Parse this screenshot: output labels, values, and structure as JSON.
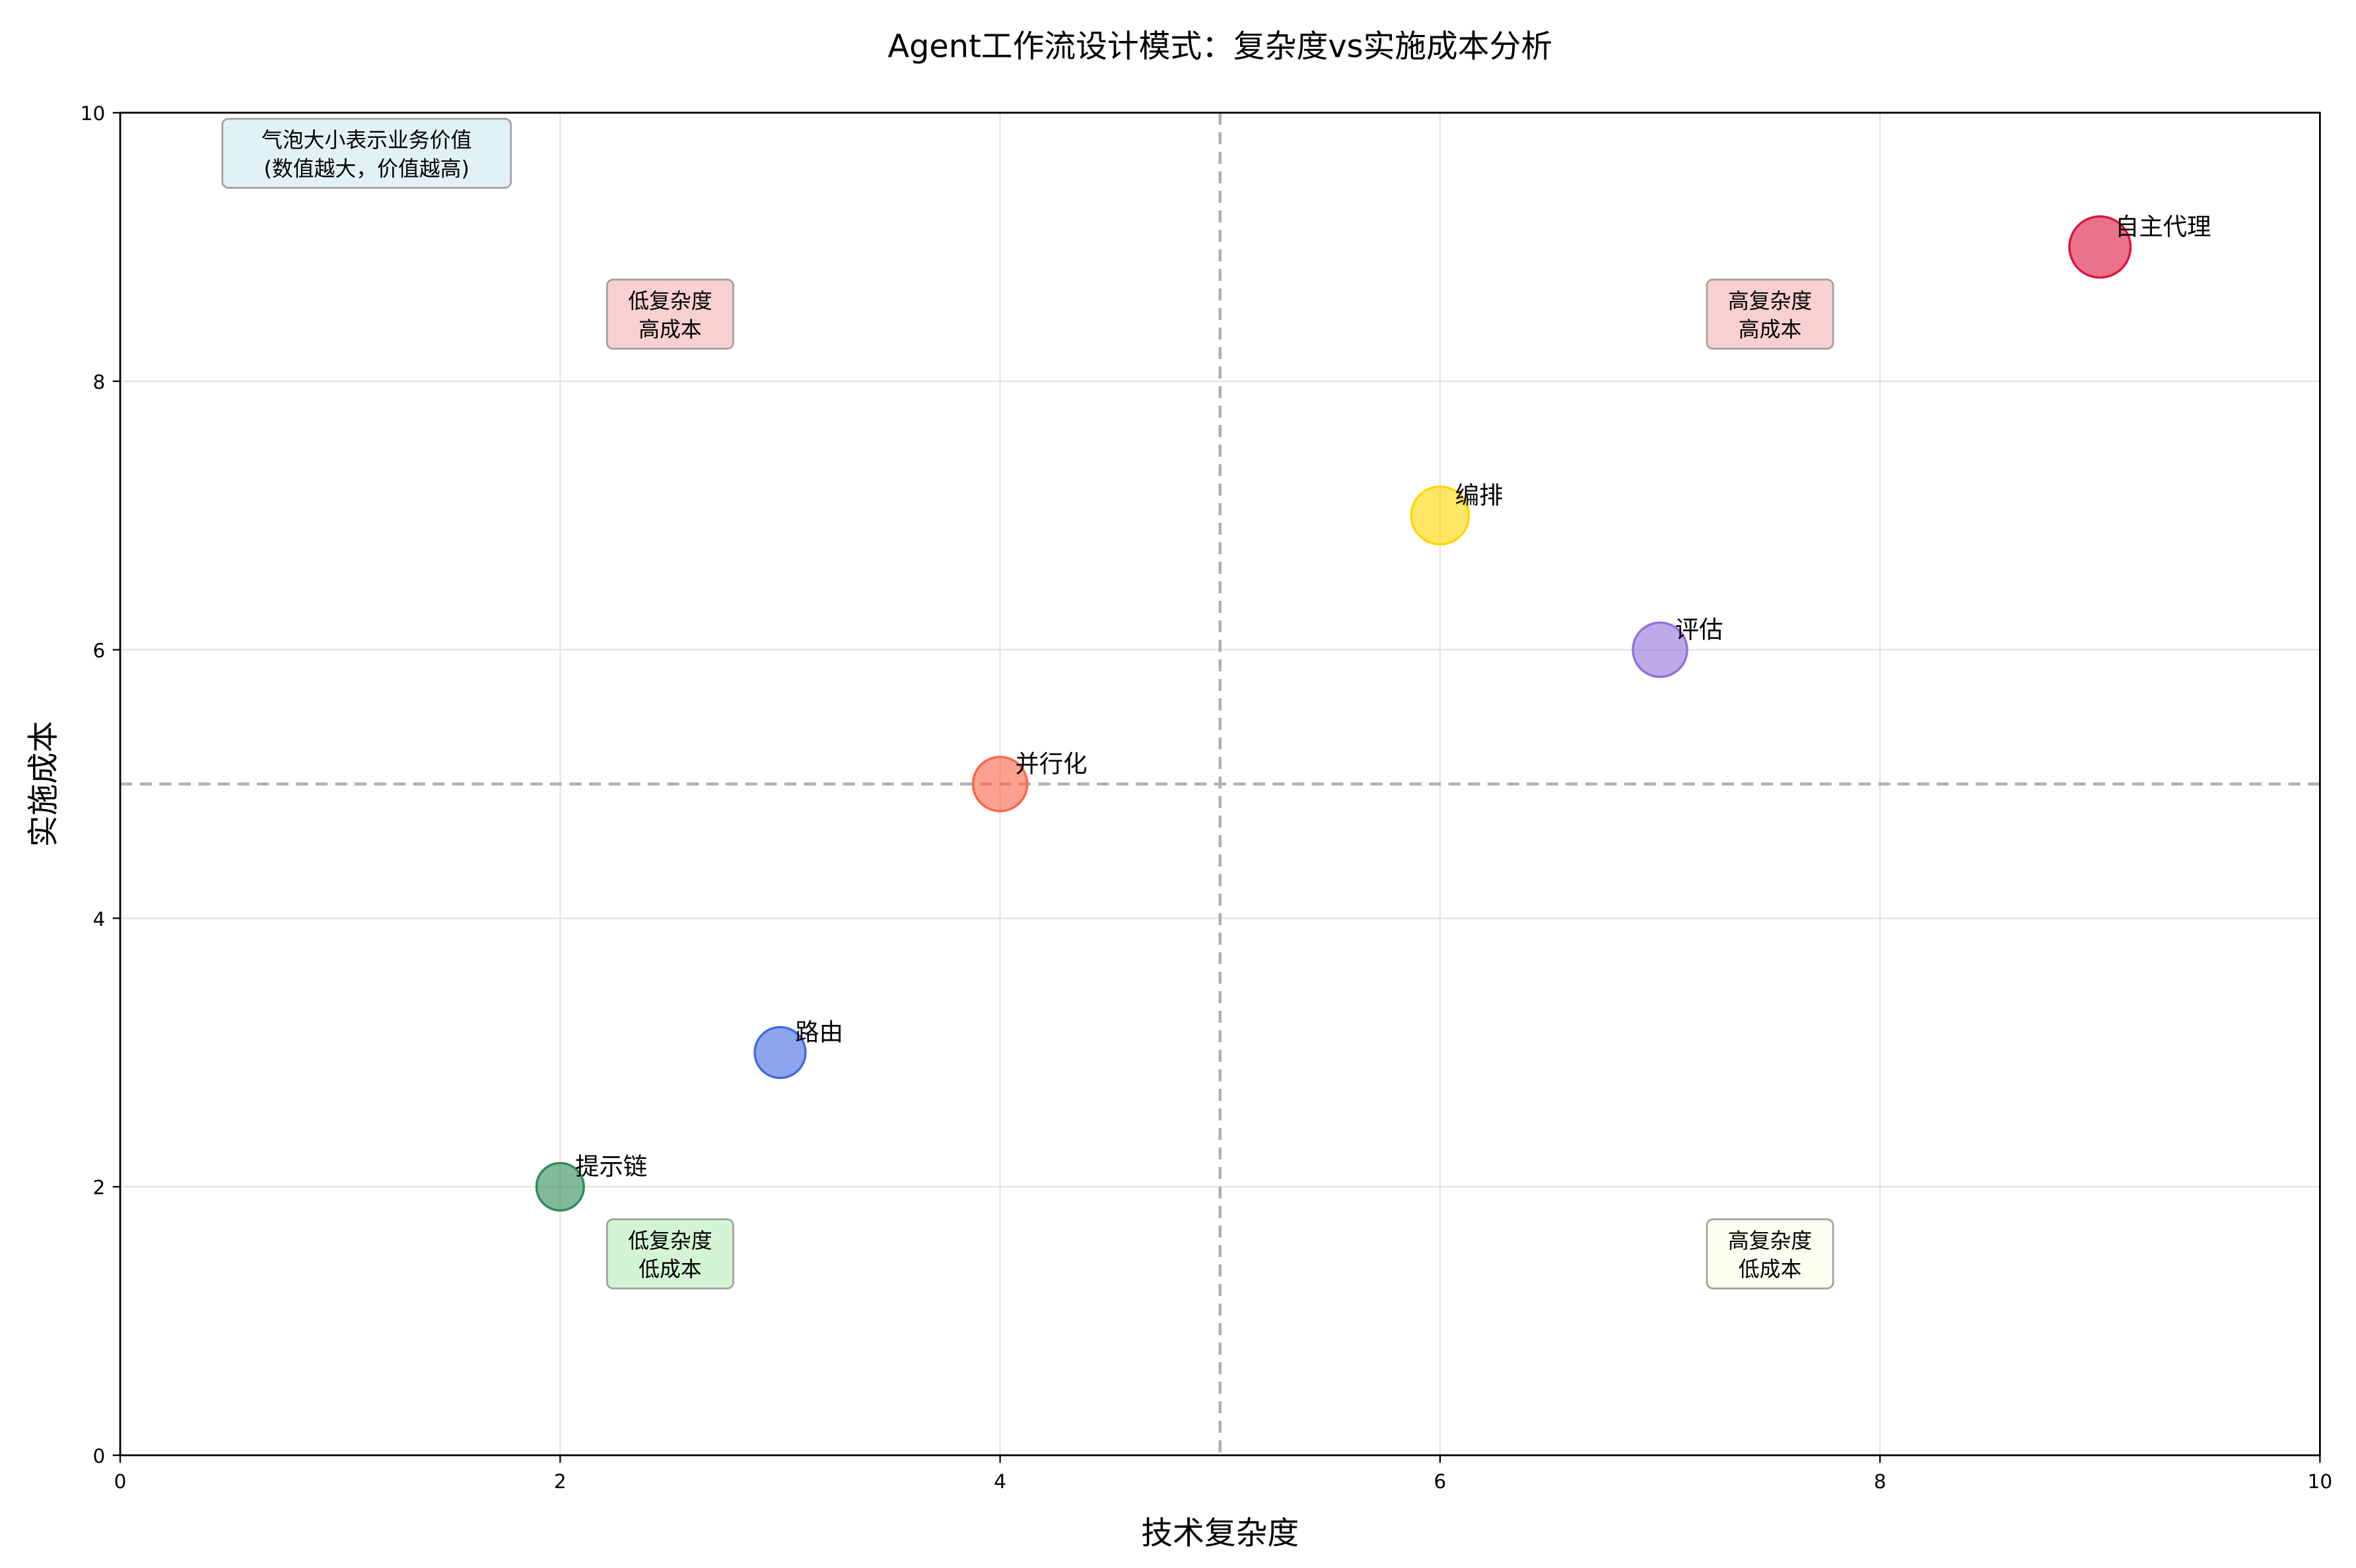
{
  "chart_data": {
    "type": "scatter",
    "title": "Agent工作流设计模式：复杂度vs实施成本分析",
    "xlabel": "技术复杂度",
    "ylabel": "实施成本",
    "xlim": [
      0,
      10
    ],
    "ylim": [
      0,
      10
    ],
    "xticks": [
      "0",
      "2",
      "4",
      "6",
      "8",
      "10"
    ],
    "yticks": [
      "0",
      "2",
      "4",
      "6",
      "8",
      "10"
    ],
    "grid": true,
    "reference_lines": {
      "x": 5,
      "y": 5,
      "style": "dashed",
      "color": "#b0b0b0"
    },
    "series": [
      {
        "label": "提示链",
        "x": 2,
        "y": 2,
        "size": 5,
        "color": "#2E8B57"
      },
      {
        "label": "路由",
        "x": 3,
        "y": 3,
        "size": 6,
        "color": "#4169E1"
      },
      {
        "label": "并行化",
        "x": 4,
        "y": 5,
        "size": 7,
        "color": "#FF6347"
      },
      {
        "label": "编排",
        "x": 6,
        "y": 7,
        "size": 8,
        "color": "#FFD700"
      },
      {
        "label": "评估",
        "x": 7,
        "y": 6,
        "size": 7,
        "color": "#9370DB"
      },
      {
        "label": "自主代理",
        "x": 9,
        "y": 9,
        "size": 9,
        "color": "#DC143C"
      }
    ],
    "quadrant_labels": [
      {
        "line1": "低复杂度",
        "line2": "高成本",
        "x": 2.5,
        "y": 8.5,
        "color": "#f8d0d0"
      },
      {
        "line1": "高复杂度",
        "line2": "高成本",
        "x": 7.5,
        "y": 8.5,
        "color": "#f8d0d0"
      },
      {
        "line1": "低复杂度",
        "line2": "低成本",
        "x": 2.5,
        "y": 1.5,
        "color": "#d4f5d4"
      },
      {
        "line1": "高复杂度",
        "line2": "低成本",
        "x": 7.5,
        "y": 1.5,
        "color": "#fdfdf0"
      }
    ],
    "note": {
      "line1": "气泡大小表示业务价值",
      "line2": "(数值越大，价值越高)",
      "color": "#e0f2f5"
    }
  }
}
